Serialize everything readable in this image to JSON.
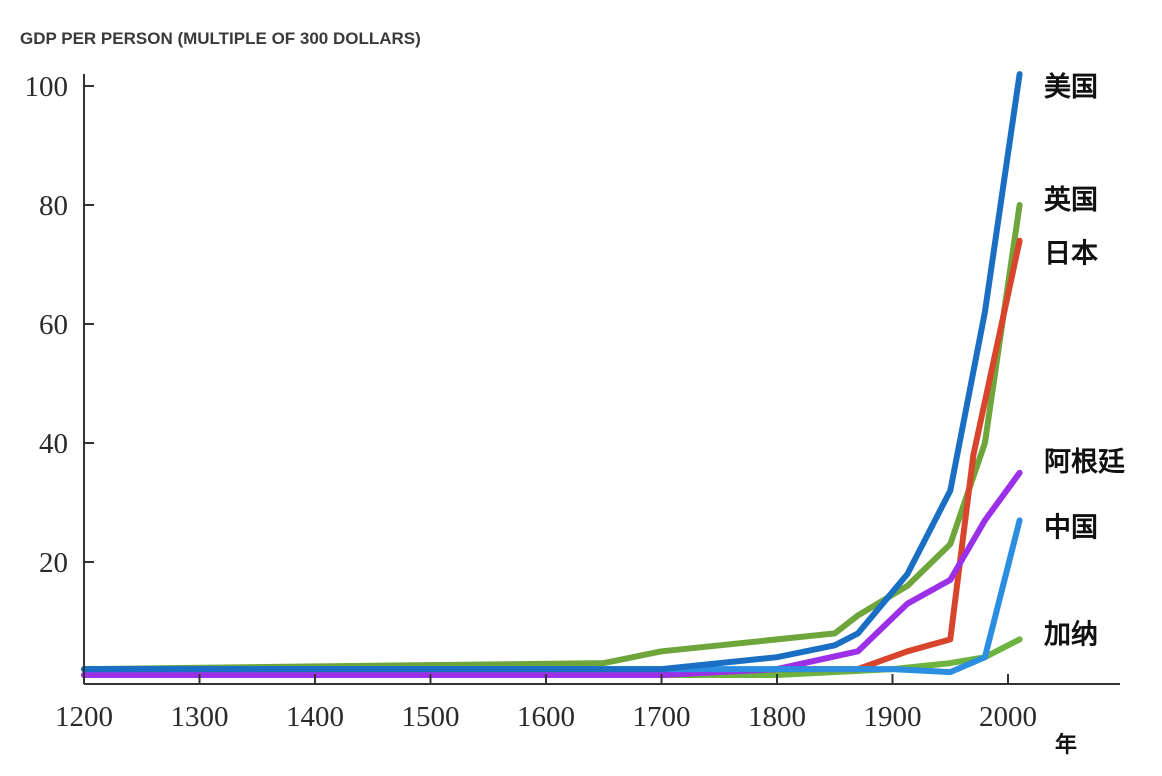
{
  "chart_data": {
    "type": "line",
    "title": "GDP PER PERSON (MULTIPLE OF 300 DOLLARS)",
    "xlabel": "年",
    "ylabel": "",
    "xlim": [
      1200,
      2100
    ],
    "ylim": [
      0,
      102
    ],
    "x_ticks": [
      1200,
      1300,
      1400,
      1500,
      1600,
      1700,
      1800,
      1900,
      2000
    ],
    "x_tick_labels": [
      "1200",
      "1300",
      "1400",
      "1500",
      "1600",
      "1700",
      "1800",
      "1900",
      "2000"
    ],
    "y_ticks": [
      20,
      40,
      60,
      80,
      100
    ],
    "y_tick_labels": [
      "20",
      "40",
      "60",
      "80",
      "100"
    ],
    "series": [
      {
        "name": "加纳",
        "color": "#6cb33f",
        "x": [
          1200,
          1600,
          1800,
          1900,
          1950,
          1980,
          2010
        ],
        "y": [
          1,
          1,
          1,
          2,
          3,
          4,
          7
        ],
        "label_y": 8
      },
      {
        "name": "英国",
        "color": "#6ea63b",
        "x": [
          1200,
          1650,
          1700,
          1800,
          1850,
          1870,
          1913,
          1950,
          1980,
          2010
        ],
        "y": [
          2,
          3,
          5,
          7,
          8,
          11,
          16,
          23,
          40,
          80
        ],
        "label_y": 81
      },
      {
        "name": "日本",
        "color": "#d9452c",
        "x": [
          1200,
          1700,
          1800,
          1870,
          1913,
          1950,
          1970,
          2010
        ],
        "y": [
          1,
          1,
          2,
          2,
          5,
          7,
          38,
          74
        ],
        "label_y": 72
      },
      {
        "name": "阿根廷",
        "color": "#9b30e8",
        "x": [
          1200,
          1700,
          1800,
          1870,
          1913,
          1950,
          1980,
          2010
        ],
        "y": [
          1,
          1,
          2,
          5,
          13,
          17,
          27,
          35
        ],
        "label_y": 37
      },
      {
        "name": "中国",
        "color": "#2b8ee0",
        "x": [
          1200,
          1700,
          1850,
          1900,
          1950,
          1980,
          2010
        ],
        "y": [
          2,
          2,
          2,
          2,
          1.5,
          4,
          27
        ],
        "label_y": 26
      },
      {
        "name": "美国",
        "color": "#1a6fc4",
        "x": [
          1200,
          1700,
          1800,
          1850,
          1870,
          1913,
          1950,
          1980,
          2010
        ],
        "y": [
          2,
          2,
          4,
          6,
          8,
          18,
          32,
          62,
          102
        ],
        "label_y": 100
      }
    ]
  }
}
